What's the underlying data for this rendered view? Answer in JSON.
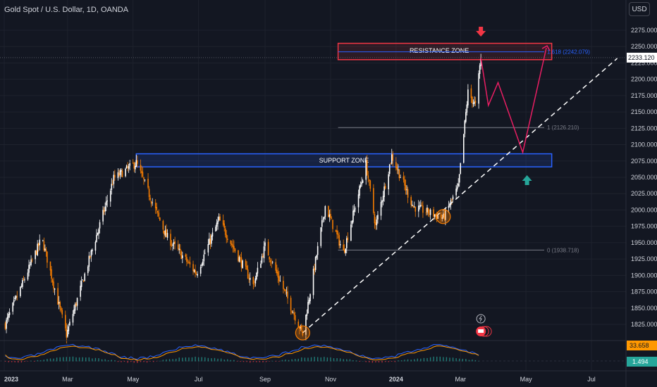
{
  "header": {
    "title": "Gold Spot / U.S. Dollar, 1D, OANDA",
    "currency_button": "USD"
  },
  "chart_data": {
    "type": "candlestick",
    "price_axis": {
      "ticks": [
        "2275.000",
        "2250.000",
        "2225.000",
        "2200.000",
        "2175.000",
        "2150.000",
        "2125.000",
        "2100.000",
        "2075.000",
        "2050.000",
        "2025.000",
        "2000.000",
        "1975.000",
        "1950.000",
        "1925.000",
        "1900.000",
        "1875.000",
        "1850.000",
        "1825.000"
      ],
      "range": [
        1815,
        2290
      ]
    },
    "time_axis": {
      "labels": [
        "2023",
        "Mar",
        "May",
        "Jul",
        "Sep",
        "Nov",
        "2024",
        "Mar",
        "May",
        "Jul"
      ]
    },
    "last_price": "2233.120",
    "oscillator_values": [
      "33.658",
      "1.494"
    ],
    "zones": {
      "resistance": {
        "label": "RESISTANCE ZONE",
        "top": 2255,
        "bottom": 2230
      },
      "support": {
        "label": "SUPPORT ZONE",
        "top": 2086,
        "bottom": 2066
      }
    },
    "fib_levels": [
      {
        "label": "1.618 (2242.079)",
        "price": 2242.079
      },
      {
        "label": "1 (2126.210)",
        "price": 2126.21
      },
      {
        "label": "0 (1938.718)",
        "price": 1938.718
      }
    ],
    "path_anchors": [
      {
        "date": "2024-03-20",
        "price": 2233
      },
      {
        "date": "2024-03-27",
        "price": 2160
      },
      {
        "date": "2024-04-05",
        "price": 2195
      },
      {
        "date": "2024-04-28",
        "price": 2088
      },
      {
        "date": "2024-05-20",
        "price": 2248
      }
    ],
    "trendline": [
      {
        "date": "2023-10-06",
        "price": 1812
      },
      {
        "date": "2024-07-25",
        "price": 2232
      }
    ],
    "key_points": [
      {
        "date": "2023-02-05",
        "price": 1957
      },
      {
        "date": "2023-02-28",
        "price": 1809
      },
      {
        "date": "2023-04-13",
        "price": 2048
      },
      {
        "date": "2023-05-04",
        "price": 2072
      },
      {
        "date": "2023-06-01",
        "price": 1960
      },
      {
        "date": "2023-06-29",
        "price": 1903
      },
      {
        "date": "2023-07-20",
        "price": 1985
      },
      {
        "date": "2023-08-21",
        "price": 1885
      },
      {
        "date": "2023-09-01",
        "price": 1945
      },
      {
        "date": "2023-10-06",
        "price": 1810
      },
      {
        "date": "2023-10-27",
        "price": 2006
      },
      {
        "date": "2023-11-13",
        "price": 1935
      },
      {
        "date": "2023-12-04",
        "price": 2070
      },
      {
        "date": "2023-12-13",
        "price": 1975
      },
      {
        "date": "2023-12-28",
        "price": 2083
      },
      {
        "date": "2024-01-17",
        "price": 2005
      },
      {
        "date": "2024-02-14",
        "price": 1988
      },
      {
        "date": "2024-02-28",
        "price": 2035
      },
      {
        "date": "2024-03-08",
        "price": 2180
      },
      {
        "date": "2024-03-15",
        "price": 2160
      },
      {
        "date": "2024-03-20",
        "price": 2233
      }
    ]
  }
}
